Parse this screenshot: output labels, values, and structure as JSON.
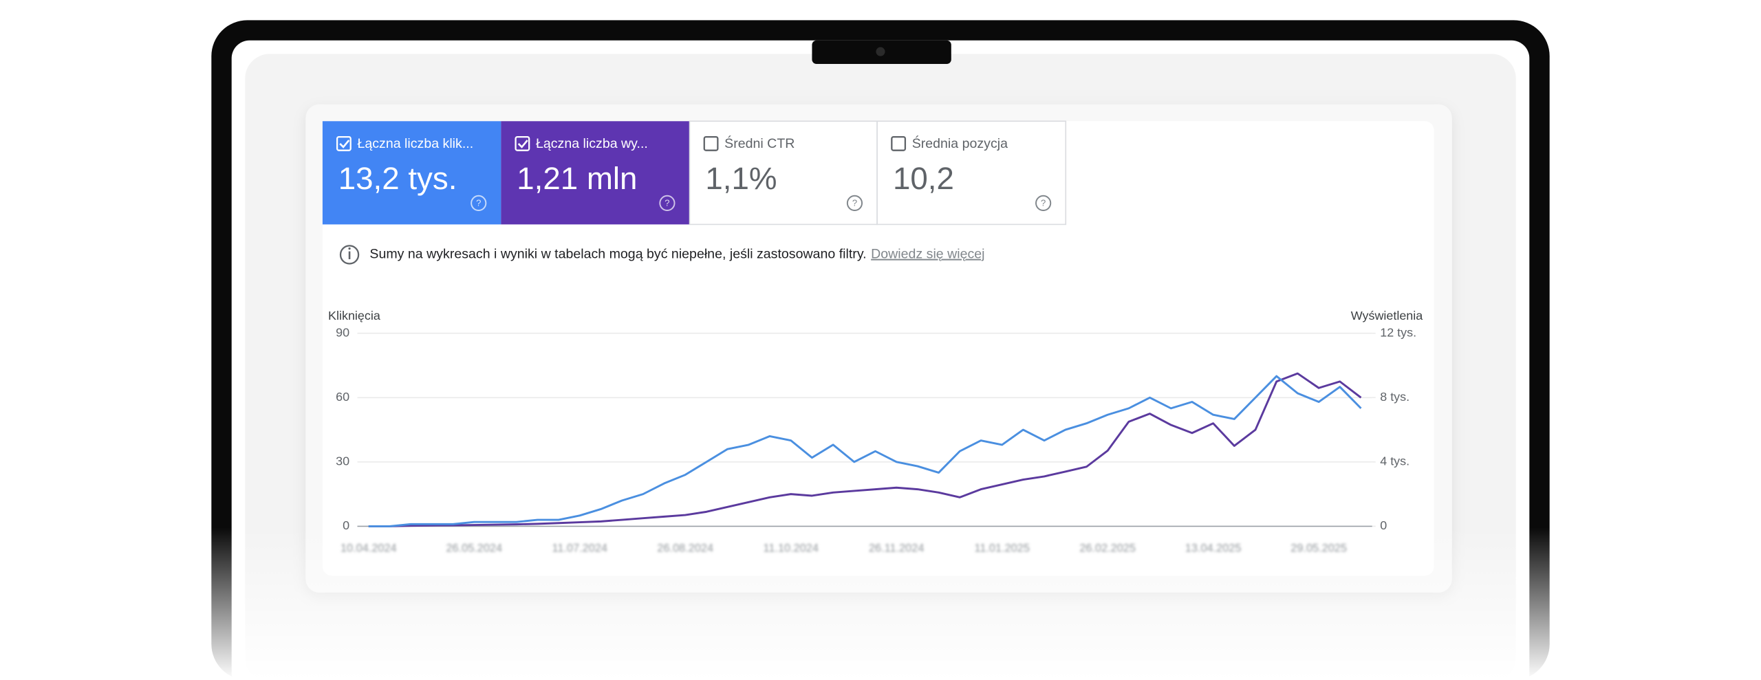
{
  "cards": [
    {
      "label": "Łączna liczba klik...",
      "value": "13,2 tys.",
      "checked": true,
      "color": "#4285f4"
    },
    {
      "label": "Łączna liczba wy...",
      "value": "1,21 mln",
      "checked": true,
      "color": "#5e35b1"
    },
    {
      "label": "Średni CTR",
      "value": "1,1%",
      "checked": false,
      "color": "#ffffff"
    },
    {
      "label": "Średnia pozycja",
      "value": "10,2",
      "checked": false,
      "color": "#ffffff"
    }
  ],
  "notice": {
    "text": "Sumy na wykresach i wyniki w tabelach mogą być niepełne, jeśli zastosowano filtry.",
    "link": "Dowiedz się więcej"
  },
  "chart_data": {
    "type": "line",
    "ylabel": "Kliknięcia",
    "y2label": "Wyświetlenia",
    "categories": [
      "10.04.2024",
      null,
      null,
      null,
      null,
      "26.05.2024",
      null,
      null,
      null,
      null,
      "11.07.2024",
      null,
      null,
      null,
      null,
      "26.08.2024",
      null,
      null,
      null,
      null,
      "11.10.2024",
      null,
      null,
      null,
      null,
      "26.11.2024",
      null,
      null,
      null,
      null,
      "11.01.2025",
      null,
      null,
      null,
      null,
      "26.02.2025",
      null,
      null,
      null,
      null,
      "13.04.2025",
      null,
      null,
      null,
      null,
      "29.05.2025",
      null,
      null
    ],
    "series": [
      {
        "color": "#4a8fe0",
        "axis": "y",
        "values": [
          0,
          0,
          1,
          1,
          1,
          2,
          2,
          2,
          3,
          3,
          5,
          8,
          12,
          15,
          20,
          24,
          30,
          36,
          38,
          42,
          40,
          32,
          38,
          30,
          35,
          30,
          28,
          25,
          35,
          40,
          38,
          45,
          40,
          45,
          48,
          52,
          55,
          60,
          55,
          58,
          52,
          50,
          60,
          70,
          62,
          58,
          65,
          55
        ]
      },
      {
        "color": "#5b3a9e",
        "axis": "y2",
        "values": [
          0,
          0,
          30,
          50,
          60,
          80,
          100,
          120,
          150,
          200,
          250,
          300,
          400,
          500,
          600,
          700,
          900,
          1200,
          1500,
          1800,
          2000,
          1900,
          2100,
          2200,
          2300,
          2400,
          2300,
          2100,
          1800,
          2300,
          2600,
          2900,
          3100,
          3400,
          3700,
          4700,
          6500,
          7000,
          6300,
          5800,
          6400,
          5000,
          6000,
          9000,
          9500,
          8600,
          9000,
          8000
        ]
      }
    ],
    "ylim": [
      0,
      90
    ],
    "yticks": [
      0,
      30,
      60,
      90
    ],
    "y2lim": [
      0,
      12000
    ],
    "y2ticks": [
      0,
      {
        "value": 4000,
        "label": "4 tys."
      },
      {
        "value": 8000,
        "label": "8 tys."
      },
      {
        "value": 12000,
        "label": "12 tys."
      }
    ],
    "grid": true
  }
}
